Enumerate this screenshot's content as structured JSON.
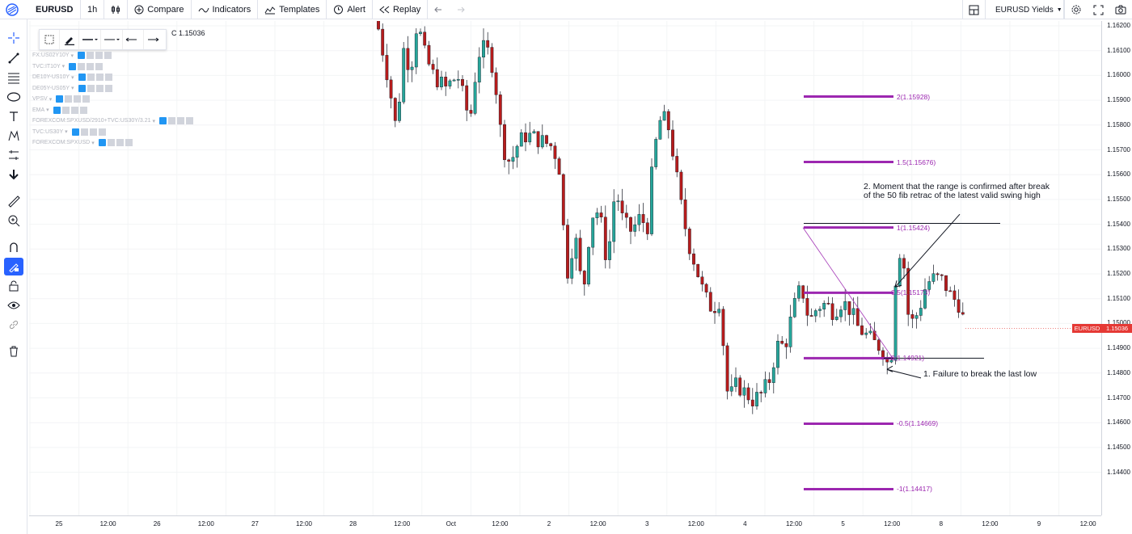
{
  "header": {
    "symbol": "EURUSD",
    "interval": "1h",
    "compare_label": "Compare",
    "indicators_label": "Indicators",
    "templates_label": "Templates",
    "alert_label": "Alert",
    "replay_label": "Replay",
    "watchlist_label": "EURUSD Yields"
  },
  "legend": {
    "close": "C 1.15036"
  },
  "indicators": [
    "FX:US02Y10Y",
    "TVC:IT10Y",
    "DE10Y-US10Y",
    "DE05Y-US05Y",
    "VPSV",
    "EMA",
    "FOREXCOM:SPXUSD/2910+TVC:US30Y/3.21",
    "TVC:US30Y",
    "FOREXCOM:SPXUSD"
  ],
  "price_scale": [
    "1.16200",
    "1.16100",
    "1.16000",
    "1.15900",
    "1.15800",
    "1.15700",
    "1.15600",
    "1.15500",
    "1.15400",
    "1.15300",
    "1.15200",
    "1.15100",
    "1.15000",
    "1.14900",
    "1.14800",
    "1.14700",
    "1.14600",
    "1.14500",
    "1.14400"
  ],
  "time_scale": [
    "25",
    "12:00",
    "26",
    "12:00",
    "27",
    "12:00",
    "28",
    "12:00",
    "Oct",
    "12:00",
    "2",
    "12:00",
    "3",
    "12:00",
    "4",
    "12:00",
    "5",
    "12:00",
    "8",
    "12:00",
    "9",
    "12:00"
  ],
  "current_price": {
    "symbol": "EURUSD",
    "value": "1.15036"
  },
  "fib_levels": [
    "2(1.15928)",
    "1.5(1.15676)",
    "1(1.15424)",
    "0.5(1.15173)",
    "0(1.14921)",
    "-0.5(1.14669)",
    "-1(1.14417)"
  ],
  "annotations": {
    "note2_line1": "2. Moment that the range is confirmed after break",
    "note2_line2": "of the 50 fib retrac of the latest valid swing high",
    "note1": "1. Failure to break the last low"
  },
  "colors": {
    "up": "#26a69a",
    "down": "#b71c1c",
    "fib": "#9c27b0",
    "accent": "#2962ff",
    "price_tag": "#e53935"
  }
}
